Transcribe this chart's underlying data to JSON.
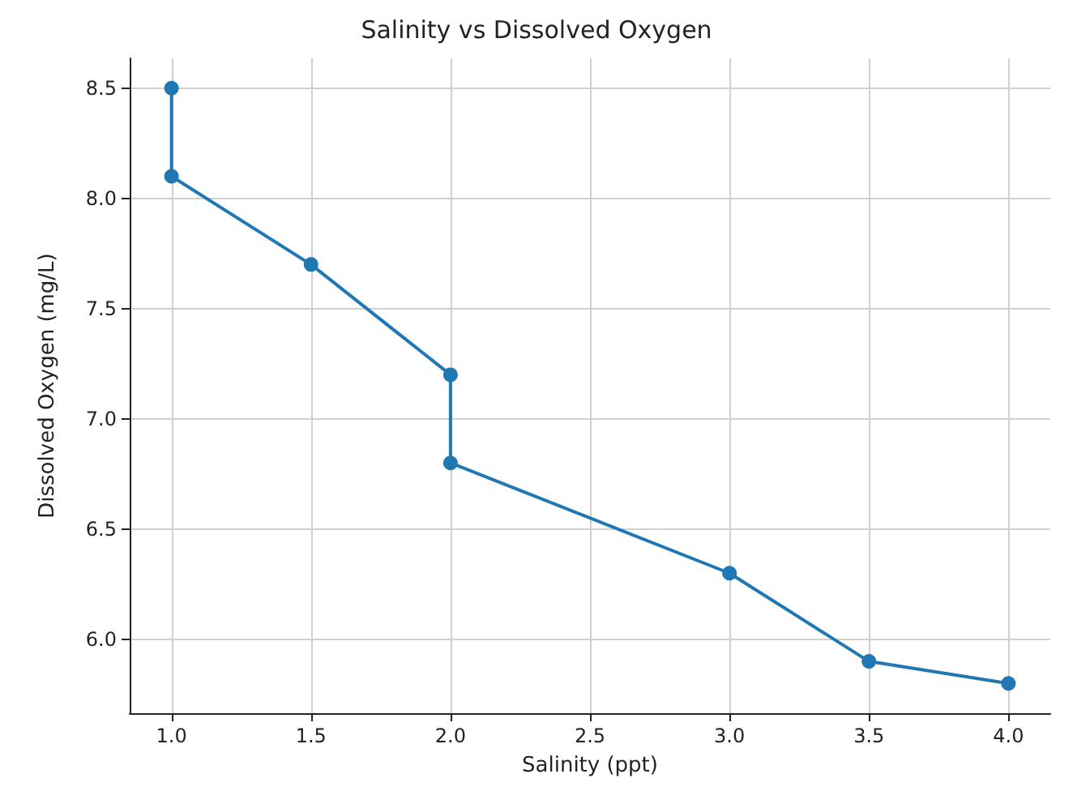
{
  "chart_data": {
    "type": "line",
    "title": "Salinity vs Dissolved Oxygen",
    "xlabel": "Salinity (ppt)",
    "ylabel": "Dissolved Oxygen (mg/L)",
    "x": [
      1.0,
      1.0,
      1.5,
      2.0,
      2.0,
      3.0,
      3.5,
      4.0
    ],
    "series": [
      {
        "color": "#1f77b4",
        "values": [
          8.5,
          8.1,
          7.7,
          7.2,
          6.8,
          6.3,
          5.9,
          5.8
        ]
      }
    ],
    "xlim": [
      0.85,
      4.15
    ],
    "ylim": [
      5.665,
      8.635
    ],
    "xticks": [
      {
        "value": 1,
        "label": "1.0"
      },
      {
        "value": 1.5,
        "label": "1.5"
      },
      {
        "value": 2,
        "label": "2.0"
      },
      {
        "value": 2.5,
        "label": "2.5"
      },
      {
        "value": 3,
        "label": "3.0"
      },
      {
        "value": 3.5,
        "label": "3.5"
      },
      {
        "value": 4,
        "label": "4.0"
      }
    ],
    "yticks": [
      {
        "value": 6,
        "label": "6.0"
      },
      {
        "value": 6.5,
        "label": "6.5"
      },
      {
        "value": 7,
        "label": "7.0"
      },
      {
        "value": 7.5,
        "label": "7.5"
      },
      {
        "value": 8,
        "label": "8.0"
      },
      {
        "value": 8.5,
        "label": "8.5"
      }
    ],
    "grid": true,
    "marker": "circle",
    "line_style": "solid"
  }
}
